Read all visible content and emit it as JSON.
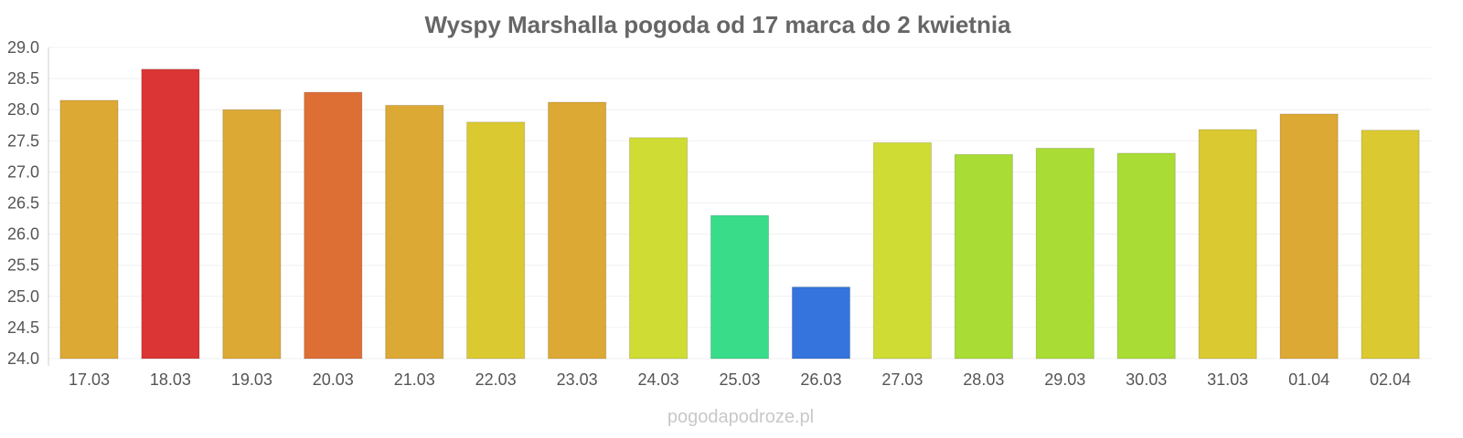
{
  "chart_data": {
    "type": "bar",
    "title": "Wyspy Marshalla pogoda od 17 marca do 2 kwietnia",
    "xlabel": "",
    "ylabel": "",
    "ylim": [
      24.0,
      29.0
    ],
    "yticks": [
      "24.0",
      "24.5",
      "25.0",
      "25.5",
      "26.0",
      "26.5",
      "27.0",
      "27.5",
      "28.0",
      "28.5",
      "29.0"
    ],
    "grid": true,
    "legend": "none",
    "categories": [
      "17.03",
      "18.03",
      "19.03",
      "20.03",
      "21.03",
      "22.03",
      "23.03",
      "24.03",
      "25.03",
      "26.03",
      "27.03",
      "28.03",
      "29.03",
      "30.03",
      "31.03",
      "01.04",
      "02.04"
    ],
    "values": [
      28.15,
      28.65,
      28.0,
      28.28,
      28.07,
      27.8,
      28.12,
      27.55,
      26.3,
      25.15,
      27.47,
      27.28,
      27.38,
      27.3,
      27.68,
      27.93,
      27.67
    ],
    "colors": [
      "#dca934",
      "#dc3535",
      "#dca934",
      "#dd6f35",
      "#dca934",
      "#dbc932",
      "#dca934",
      "#cfdc34",
      "#38dc89",
      "#3474dc",
      "#cfdc34",
      "#a9dc34",
      "#a9dc34",
      "#a9dc34",
      "#dbc932",
      "#dca934",
      "#dbc932"
    ]
  },
  "watermark": "pogodapodroze.pl"
}
